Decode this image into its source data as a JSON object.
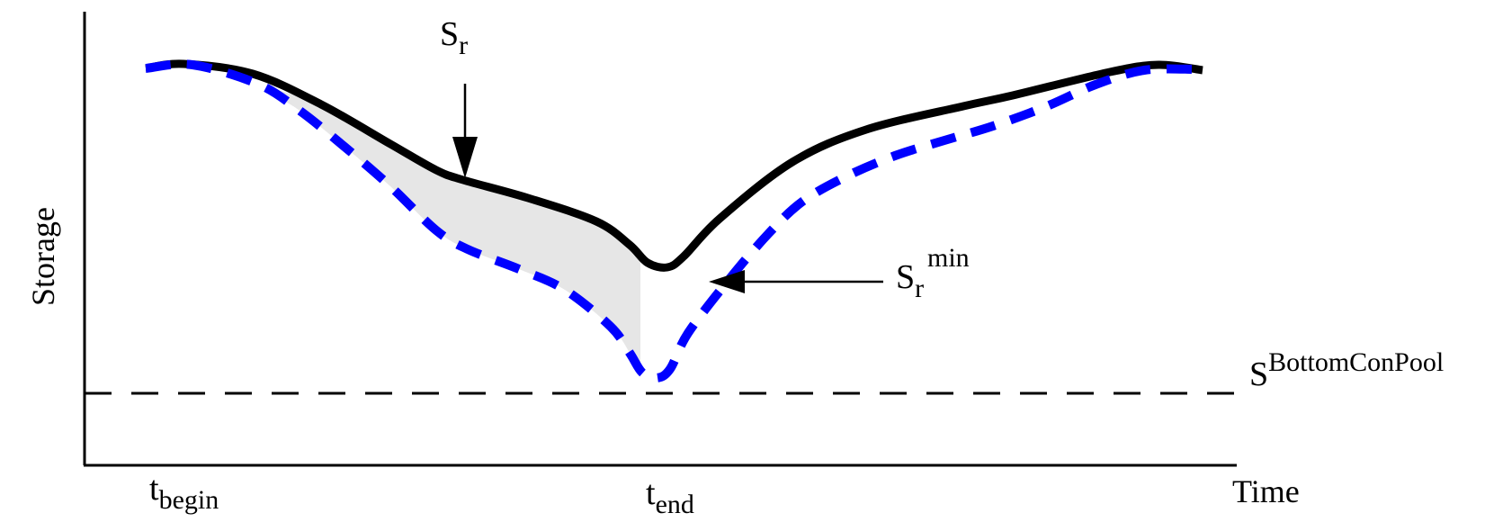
{
  "labels": {
    "y_axis": "Storage",
    "x_axis": "Time",
    "t_begin": {
      "base": "t",
      "sub": "begin"
    },
    "t_end": {
      "base": "t",
      "sub": "end"
    },
    "s_r": {
      "base": "S",
      "sub": "r"
    },
    "s_r_min": {
      "base": "S",
      "sub": "r",
      "sup": "min"
    },
    "s_bottom": {
      "base": "S",
      "sup": "BottomConPool"
    }
  },
  "colors": {
    "storage_curve": "#000000",
    "lower_curve": "#0000ff",
    "shaded_area": "#e6e6e6",
    "threshold_line": "#000000"
  }
}
